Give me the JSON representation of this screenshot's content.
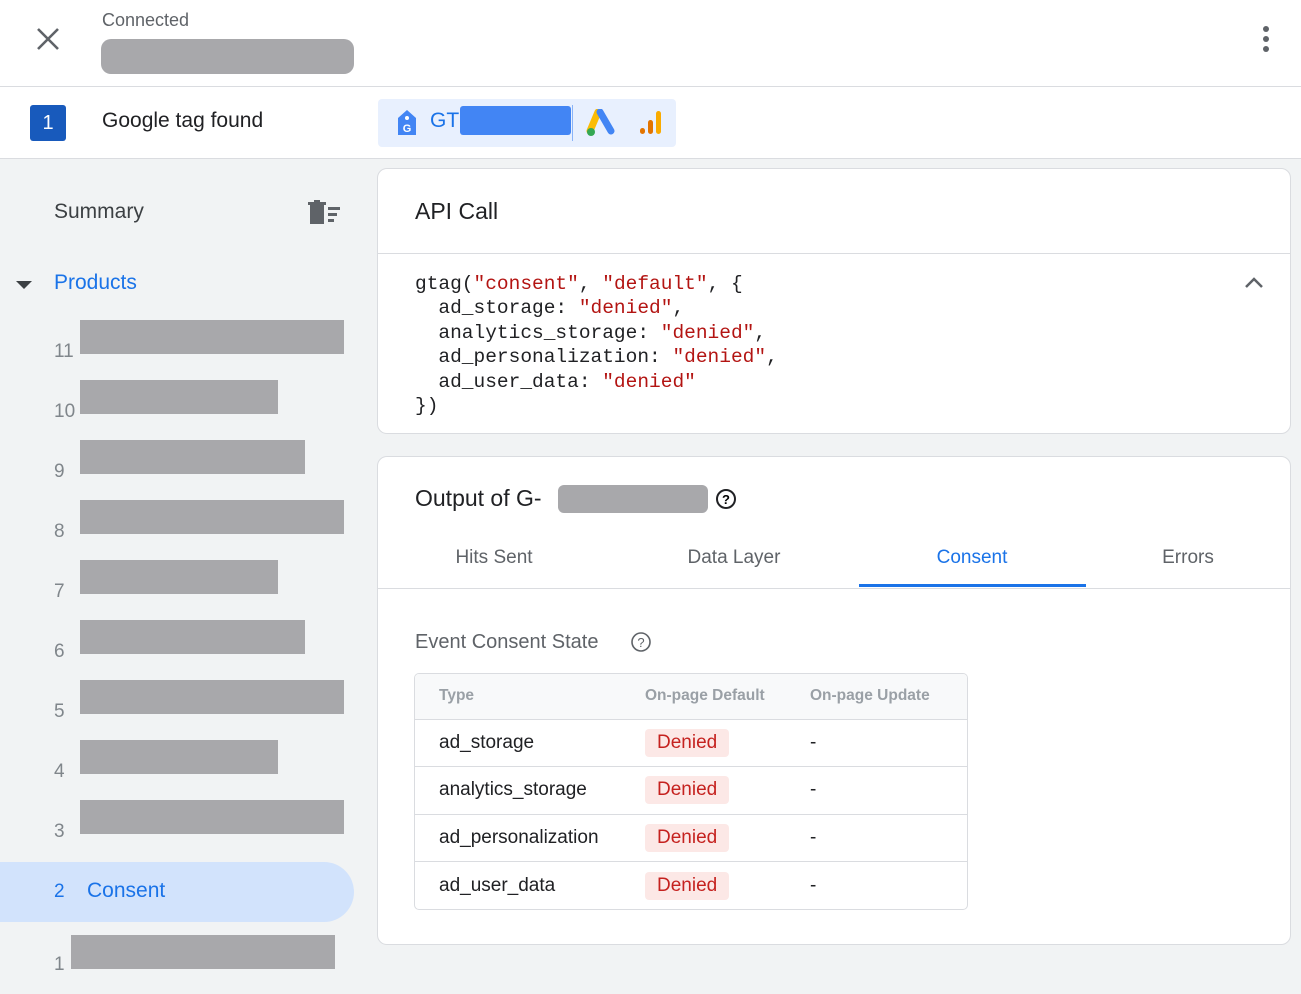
{
  "header": {
    "status": "Connected",
    "close_icon": "close-icon",
    "menu_icon": "more-vert-icon"
  },
  "tagbar": {
    "count": "1",
    "label": "Google tag found",
    "tag_prefix": "GT",
    "icons": [
      "google-tag-icon",
      "google-ads-icon",
      "google-analytics-icon"
    ]
  },
  "sidebar": {
    "summary": "Summary",
    "section": "Products",
    "items": [
      {
        "num": "11"
      },
      {
        "num": "10"
      },
      {
        "num": "9"
      },
      {
        "num": "8"
      },
      {
        "num": "7"
      },
      {
        "num": "6"
      },
      {
        "num": "5"
      },
      {
        "num": "4"
      },
      {
        "num": "3"
      },
      {
        "num": "2",
        "label": "Consent",
        "selected": true
      },
      {
        "num": "1"
      }
    ]
  },
  "api": {
    "title": "API Call"
  },
  "output": {
    "title": "Output of G-",
    "tabs": [
      "Hits Sent",
      "Data Layer",
      "Consent",
      "Errors"
    ],
    "active_tab": "Consent",
    "section_title": "Event Consent State",
    "table": {
      "headers": [
        "Type",
        "On-page Default",
        "On-page Update"
      ],
      "rows": [
        [
          "ad_storage",
          "Denied",
          "-"
        ],
        [
          "analytics_storage",
          "Denied",
          "-"
        ],
        [
          "ad_personalization",
          "Denied",
          "-"
        ],
        [
          "ad_user_data",
          "Denied",
          "-"
        ]
      ]
    }
  },
  "colors": {
    "accent": "#1a73e8",
    "denied_bg": "#fce8e6",
    "denied_text": "#c5221f",
    "selected_bg": "#d2e3fc"
  }
}
